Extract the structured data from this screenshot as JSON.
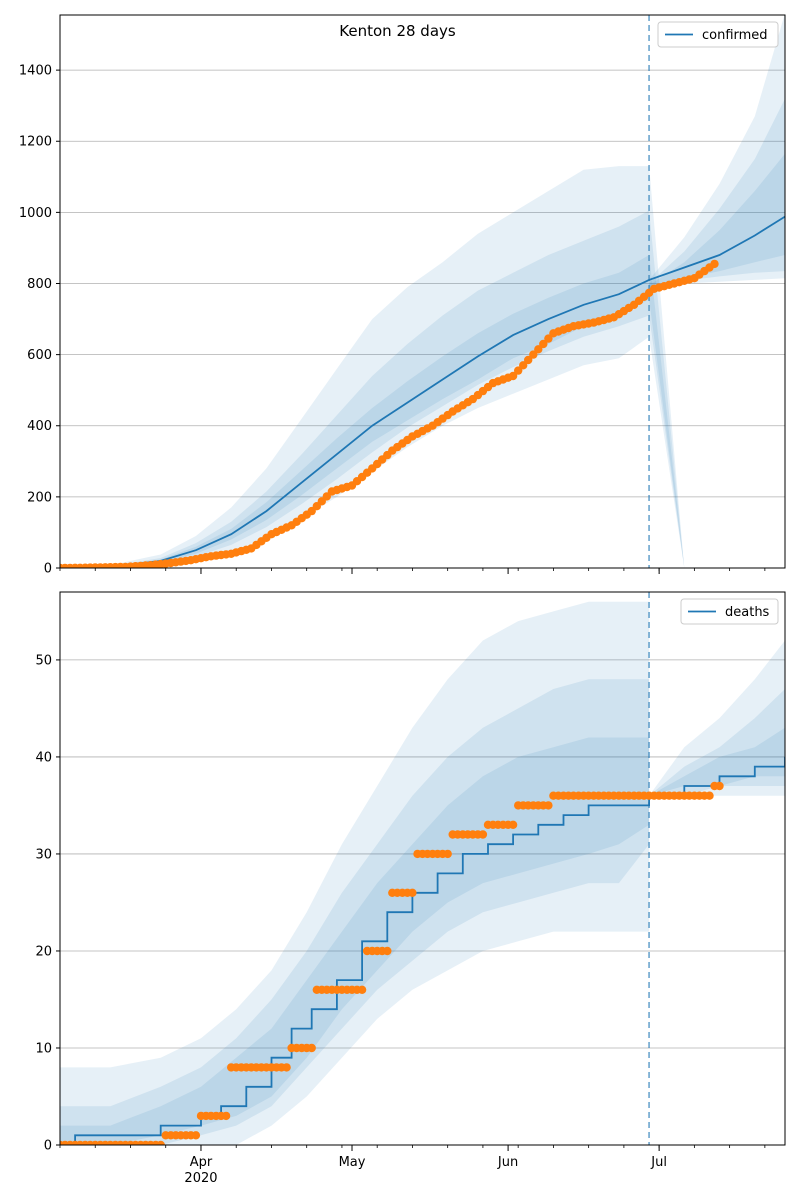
{
  "chart_data": [
    {
      "type": "line",
      "title": "Kenton 28 days",
      "legend": {
        "label": "confirmed",
        "placement": "top-right"
      },
      "x_range": [
        "2020-03-04",
        "2020-07-26"
      ],
      "ylim": [
        0,
        1555
      ],
      "yticks": [
        0,
        200,
        400,
        600,
        800,
        1000,
        1200,
        1400
      ],
      "grid": "horizontal",
      "forecast_start": "2020-06-29",
      "median": {
        "x": [
          "2020-03-04",
          "2020-03-14",
          "2020-03-24",
          "2020-03-31",
          "2020-04-07",
          "2020-04-14",
          "2020-04-21",
          "2020-04-28",
          "2020-05-05",
          "2020-05-12",
          "2020-05-19",
          "2020-05-26",
          "2020-06-02",
          "2020-06-09",
          "2020-06-16",
          "2020-06-23",
          "2020-06-29",
          "2020-07-06",
          "2020-07-13",
          "2020-07-20",
          "2020-07-26"
        ],
        "y": [
          0,
          3,
          20,
          50,
          95,
          160,
          240,
          320,
          400,
          465,
          530,
          595,
          655,
          700,
          740,
          770,
          810,
          845,
          880,
          935,
          988
        ]
      },
      "bands": [
        {
          "upper": [
            0,
            8,
            38,
            90,
            170,
            280,
            420,
            560,
            700,
            790,
            860,
            940,
            1000,
            1060,
            1120,
            1130,
            1130,
            0,
            0,
            0,
            0
          ],
          "lower": [
            0,
            0,
            8,
            22,
            45,
            85,
            140,
            200,
            270,
            340,
            400,
            450,
            490,
            530,
            570,
            590,
            650,
            0,
            0,
            0,
            0
          ]
        },
        {
          "upper": [
            0,
            5,
            28,
            70,
            130,
            215,
            320,
            430,
            540,
            630,
            710,
            780,
            830,
            880,
            920,
            960,
            1005,
            0,
            0,
            0,
            0
          ],
          "lower": [
            0,
            1,
            12,
            32,
            65,
            115,
            180,
            250,
            325,
            395,
            455,
            515,
            565,
            610,
            650,
            680,
            710,
            0,
            0,
            0,
            0
          ]
        },
        {
          "upper": [
            0,
            4,
            24,
            60,
            110,
            185,
            275,
            365,
            450,
            525,
            595,
            660,
            715,
            760,
            800,
            830,
            880,
            0,
            0,
            0,
            0
          ],
          "lower": [
            0,
            2,
            16,
            40,
            80,
            135,
            205,
            280,
            355,
            415,
            475,
            530,
            590,
            630,
            680,
            710,
            755,
            0,
            0,
            0,
            0
          ]
        }
      ],
      "forecast_bands": {
        "x": [
          "2020-06-29",
          "2020-07-06",
          "2020-07-13",
          "2020-07-20",
          "2020-07-26"
        ],
        "bands": [
          {
            "upper": [
              810,
              930,
              1080,
              1270,
              1560
            ],
            "lower": [
              780,
              800,
              805,
              810,
              815
            ]
          },
          {
            "upper": [
              800,
              890,
              1010,
              1150,
              1320
            ],
            "lower": [
              785,
              808,
              820,
              830,
              835
            ]
          },
          {
            "upper": [
              795,
              860,
              950,
              1060,
              1165
            ],
            "lower": [
              790,
              815,
              835,
              860,
              880
            ]
          }
        ]
      },
      "observed": {
        "x": [
          "2020-03-04",
          "2020-03-10",
          "2020-03-17",
          "2020-03-22",
          "2020-03-26",
          "2020-03-30",
          "2020-04-03",
          "2020-04-07",
          "2020-04-11",
          "2020-04-15",
          "2020-04-19",
          "2020-04-23",
          "2020-04-27",
          "2020-05-01",
          "2020-05-05",
          "2020-05-09",
          "2020-05-13",
          "2020-05-17",
          "2020-05-21",
          "2020-05-25",
          "2020-05-29",
          "2020-06-02",
          "2020-06-06",
          "2020-06-10",
          "2020-06-14",
          "2020-06-18",
          "2020-06-22",
          "2020-06-26",
          "2020-06-30",
          "2020-07-04",
          "2020-07-08",
          "2020-07-12"
        ],
        "y": [
          0,
          1,
          3,
          8,
          14,
          22,
          33,
          40,
          55,
          95,
          120,
          160,
          215,
          232,
          280,
          330,
          370,
          400,
          440,
          475,
          520,
          540,
          600,
          660,
          680,
          690,
          705,
          740,
          785,
          800,
          815,
          855
        ]
      }
    },
    {
      "type": "line",
      "title": "",
      "legend": {
        "label": "deaths",
        "placement": "top-right"
      },
      "x_range": [
        "2020-03-04",
        "2020-07-26"
      ],
      "ylim": [
        0,
        57
      ],
      "yticks": [
        0,
        10,
        20,
        30,
        40,
        50
      ],
      "xticks": [
        "Apr",
        "May",
        "Jun",
        "Jul"
      ],
      "xtick_year": "2020",
      "grid": "horizontal",
      "forecast_start": "2020-06-29",
      "median": {
        "x": [
          "2020-03-04",
          "2020-03-07",
          "2020-03-24",
          "2020-03-28",
          "2020-04-01",
          "2020-04-05",
          "2020-04-10",
          "2020-04-15",
          "2020-04-19",
          "2020-04-23",
          "2020-04-28",
          "2020-05-03",
          "2020-05-08",
          "2020-05-13",
          "2020-05-18",
          "2020-05-23",
          "2020-05-28",
          "2020-06-02",
          "2020-06-07",
          "2020-06-12",
          "2020-06-17",
          "2020-06-22",
          "2020-06-29",
          "2020-07-06",
          "2020-07-13",
          "2020-07-20",
          "2020-07-26"
        ],
        "y": [
          0,
          1,
          2,
          2,
          3,
          4,
          6,
          9,
          12,
          14,
          17,
          21,
          24,
          26,
          28,
          30,
          31,
          32,
          33,
          34,
          35,
          35,
          36,
          37,
          38,
          39,
          40
        ]
      },
      "bands": [
        {
          "upper": [
            8,
            8,
            9,
            11,
            14,
            18,
            24,
            31,
            37,
            43,
            48,
            52,
            54,
            55,
            56,
            56,
            56
          ],
          "lower": [
            0,
            0,
            0,
            0,
            0,
            2,
            5,
            9,
            13,
            16,
            18,
            20,
            21,
            22,
            22,
            22,
            22
          ]
        },
        {
          "upper": [
            4,
            4,
            6,
            8,
            11,
            15,
            20,
            26,
            31,
            36,
            40,
            43,
            45,
            47,
            48,
            48,
            48
          ],
          "lower": [
            0,
            0,
            0,
            1,
            2,
            4,
            8,
            12,
            16,
            19,
            22,
            24,
            25,
            26,
            27,
            27,
            31
          ]
        },
        {
          "upper": [
            2,
            2,
            4,
            6,
            9,
            12,
            17,
            22,
            27,
            31,
            35,
            38,
            40,
            41,
            42,
            42,
            42
          ],
          "lower": [
            0,
            0,
            1,
            2,
            3,
            5,
            9,
            14,
            18,
            22,
            25,
            27,
            28,
            29,
            30,
            31,
            33
          ]
        }
      ],
      "band_x": [
        "2020-03-04",
        "2020-03-14",
        "2020-03-24",
        "2020-04-01",
        "2020-04-08",
        "2020-04-15",
        "2020-04-22",
        "2020-04-29",
        "2020-05-06",
        "2020-05-13",
        "2020-05-20",
        "2020-05-27",
        "2020-06-03",
        "2020-06-10",
        "2020-06-17",
        "2020-06-23",
        "2020-06-29"
      ],
      "forecast_bands": {
        "x": [
          "2020-06-29",
          "2020-07-06",
          "2020-07-13",
          "2020-07-20",
          "2020-07-26"
        ],
        "bands": [
          {
            "upper": [
              36,
              41,
              44,
              48,
              52
            ],
            "lower": [
              36,
              36,
              36,
              36,
              36
            ]
          },
          {
            "upper": [
              36,
              39,
              41,
              44,
              47
            ],
            "lower": [
              36,
              36,
              37,
              37,
              37
            ]
          },
          {
            "upper": [
              36,
              38,
              40,
              41,
              43
            ],
            "lower": [
              36,
              37,
              37,
              38,
              38
            ]
          }
        ]
      },
      "observed": {
        "x": [
          "2020-03-04",
          "2020-03-10",
          "2020-03-20",
          "2020-03-27",
          "2020-04-03",
          "2020-04-09",
          "2020-04-16",
          "2020-04-21",
          "2020-04-25",
          "2020-04-30",
          "2020-05-06",
          "2020-05-10",
          "2020-05-16",
          "2020-05-23",
          "2020-05-30",
          "2020-06-05",
          "2020-06-12",
          "2020-06-19",
          "2020-06-26",
          "2020-07-03",
          "2020-07-10",
          "2020-07-13"
        ],
        "y": [
          0,
          0,
          0,
          1,
          3,
          8,
          8,
          10,
          16,
          16,
          20,
          26,
          30,
          32,
          33,
          35,
          36,
          36,
          36,
          36,
          36,
          37
        ]
      }
    }
  ]
}
